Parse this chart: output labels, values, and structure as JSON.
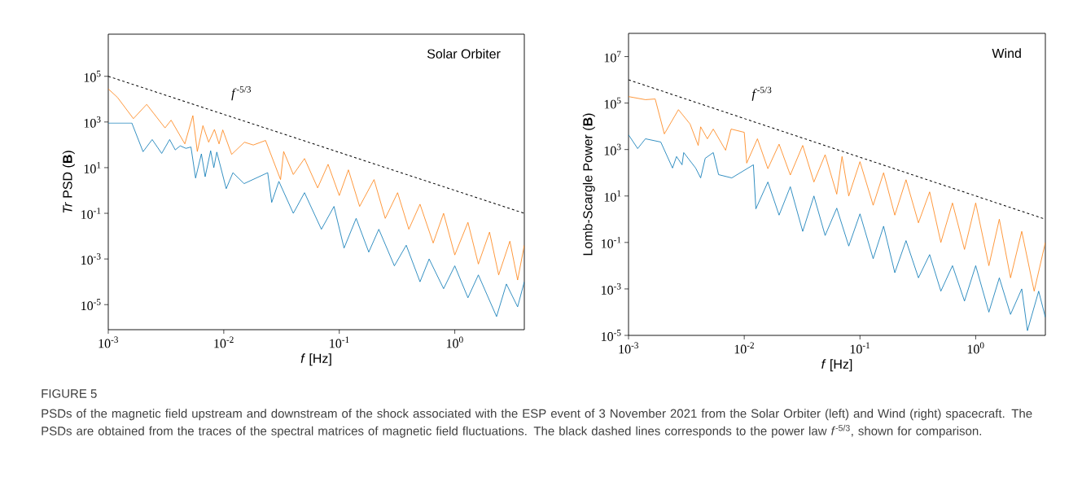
{
  "chart_data": [
    {
      "type": "line",
      "log": "xy",
      "marker": "none",
      "xlabel": "*f* [Hz]",
      "ylabel": "*Tr* PSD (**B**)",
      "xlim": [
        0.001,
        4
      ],
      "ylim": [
        8e-07,
        7000000.0
      ],
      "xticks": [
        {
          "value": 0.001,
          "label": "10$^{-3}$"
        },
        {
          "value": 0.01,
          "label": "10$^{-2}$"
        },
        {
          "value": 0.1,
          "label": "10$^{-1}$"
        },
        {
          "value": 1,
          "label": "10$^{0}$"
        }
      ],
      "yticks": [
        {
          "value": 1e-05,
          "label": "10$^{-5}$"
        },
        {
          "value": 0.001,
          "label": "10$^{-3}$"
        },
        {
          "value": 0.1,
          "label": "10$^{-1}$"
        },
        {
          "value": 10,
          "label": "10$^{1}$"
        },
        {
          "value": 1000,
          "label": "10$^{3}$"
        },
        {
          "value": 100000,
          "label": "10$^{5}$"
        }
      ],
      "series": [
        {
          "color": "#fe7f0e",
          "x": [
            0.001,
            0.0012,
            0.00165,
            0.00215,
            0.0031,
            0.0035,
            0.0046,
            0.0054,
            0.0059,
            0.0066,
            0.0074,
            0.0083,
            0.0091,
            0.0098,
            0.0117,
            0.0151,
            0.018,
            0.023,
            0.031,
            0.033,
            0.04,
            0.05,
            0.065,
            0.08,
            0.1,
            0.12,
            0.15,
            0.2,
            0.25,
            0.32,
            0.4,
            0.5,
            0.65,
            0.8,
            1.0,
            1.3,
            1.6,
            2.0,
            2.4,
            3.0,
            3.5,
            4.0
          ],
          "values": [
            28000,
            12000,
            1400,
            5900,
            550,
            1200,
            110,
            1900,
            51,
            690,
            130,
            470,
            110,
            450,
            38,
            130,
            98,
            155,
            3.0,
            51,
            5,
            25,
            1.3,
            14,
            0.6,
            8,
            0.2,
            3,
            0.06,
            0.8,
            0.02,
            0.25,
            0.005,
            0.1,
            0.0015,
            0.04,
            0.0006,
            0.015,
            0.0002,
            0.006,
            0.00012,
            0.004
          ]
        },
        {
          "color": "#0173b2",
          "x": [
            0.001,
            0.0016,
            0.002,
            0.0024,
            0.0029,
            0.0034,
            0.0038,
            0.0042,
            0.0047,
            0.0052,
            0.0057,
            0.0064,
            0.0069,
            0.0077,
            0.0082,
            0.0087,
            0.0105,
            0.012,
            0.015,
            0.024,
            0.026,
            0.03,
            0.04,
            0.05,
            0.07,
            0.09,
            0.11,
            0.14,
            0.18,
            0.22,
            0.3,
            0.38,
            0.5,
            0.6,
            0.8,
            1.0,
            1.3,
            1.6,
            2.3,
            2.8,
            3.5,
            4.0
          ],
          "values": [
            900,
            900,
            50,
            170,
            42,
            170,
            60,
            90,
            70,
            80,
            3.5,
            40,
            4,
            55,
            10,
            48,
            1.2,
            6,
            2,
            6,
            0.3,
            2.5,
            0.1,
            0.8,
            0.02,
            0.2,
            0.003,
            0.06,
            0.002,
            0.02,
            0.0005,
            0.004,
            0.0001,
            0.001,
            5e-05,
            0.0005,
            2e-05,
            0.0002,
            3e-06,
            8e-05,
            8e-06,
            0.0001
          ]
        },
        {
          "color": "#000000",
          "line_style": "dashed",
          "x": [
            0.001,
            4
          ],
          "values": [
            100000,
            0.1
          ]
        }
      ],
      "annotations": [
        "Solar Orbiter",
        "*f*$^{-5/3}$",
        "FIGURE 5",
        "PSDs of the magnetic field upstream and downstream of the shock associated with the ESP event of 3 November 2021 from the Solar Orbiter (left) and Wind (right) spacecraft. The PSDs are obtained from the traces of the spectral matrices of magnetic field fluctuations. The black dashed lines corresponds to the power law *f*$^{-5/3}$, shown for comparison."
      ]
    },
    {
      "type": "line",
      "log": "xy",
      "marker": "none",
      "xlabel": "*f* [Hz]",
      "ylabel": "Lomb-Scargle Power (**B**)",
      "xlim": [
        0.001,
        4
      ],
      "ylim": [
        1e-05,
        100000000.0
      ],
      "xticks": [
        {
          "value": 0.001,
          "label": "10$^{-3}$"
        },
        {
          "value": 0.01,
          "label": "10$^{-2}$"
        },
        {
          "value": 0.1,
          "label": "10$^{-1}$"
        },
        {
          "value": 1,
          "label": "10$^{0}$"
        }
      ],
      "yticks": [
        {
          "value": 1e-05,
          "label": "10$^{-5}$"
        },
        {
          "value": 0.001,
          "label": "10$^{-3}$"
        },
        {
          "value": 0.1,
          "label": "10$^{-1}$"
        },
        {
          "value": 10,
          "label": "10$^{1}$"
        },
        {
          "value": 1000,
          "label": "10$^{3}$"
        },
        {
          "value": 100000,
          "label": "10$^{5}$"
        },
        {
          "value": 10000000,
          "label": "10$^{7}$"
        }
      ],
      "series": [
        {
          "color": "#fe7f0e",
          "x": [
            0.001,
            0.0014,
            0.0017,
            0.00204,
            0.0027,
            0.0034,
            0.004,
            0.0042,
            0.0048,
            0.0054,
            0.0069,
            0.0077,
            0.01,
            0.0105,
            0.013,
            0.016,
            0.02,
            0.025,
            0.032,
            0.04,
            0.05,
            0.063,
            0.07,
            0.08,
            0.1,
            0.13,
            0.16,
            0.2,
            0.25,
            0.32,
            0.4,
            0.5,
            0.63,
            0.8,
            1.0,
            1.3,
            1.6,
            2.0,
            2.5,
            3.2,
            4.0
          ],
          "values": [
            190000,
            140000,
            150000,
            4700,
            52000,
            12600,
            1500,
            9500,
            2900,
            7600,
            930,
            7600,
            5500,
            260,
            2900,
            150,
            1700,
            80,
            1500,
            40,
            600,
            12,
            500,
            10,
            300,
            4,
            100,
            1.5,
            50,
            0.7,
            15,
            0.1,
            5,
            0.05,
            5,
            0.01,
            1,
            0.003,
            0.3,
            0.0008,
            0.1
          ]
        },
        {
          "color": "#0173b2",
          "x": [
            0.001,
            0.0012,
            0.0014,
            0.0019,
            0.0024,
            0.0026,
            0.0029,
            0.003,
            0.0038,
            0.0042,
            0.0046,
            0.0054,
            0.006,
            0.0078,
            0.012,
            0.0126,
            0.016,
            0.02,
            0.025,
            0.032,
            0.04,
            0.05,
            0.063,
            0.08,
            0.1,
            0.13,
            0.16,
            0.2,
            0.25,
            0.32,
            0.4,
            0.5,
            0.63,
            0.8,
            1.0,
            1.3,
            1.6,
            2.0,
            2.5,
            2.8,
            3.5,
            4.0
          ],
          "values": [
            4300,
            1100,
            2900,
            2100,
            160,
            500,
            220,
            740,
            160,
            60,
            420,
            740,
            83,
            60,
            220,
            2.8,
            40,
            1.5,
            25,
            0.3,
            10,
            0.2,
            3,
            0.07,
            1.7,
            0.02,
            0.5,
            0.005,
            0.12,
            0.003,
            0.03,
            0.0008,
            0.01,
            0.0003,
            0.01,
            0.0001,
            0.003,
            8e-05,
            0.001,
            1.6e-05,
            0.0008,
            6e-05
          ]
        },
        {
          "color": "#000000",
          "line_style": "dashed",
          "x": [
            0.001,
            4
          ],
          "values": [
            1000000,
            1
          ]
        }
      ],
      "annotations": [
        "Wind",
        "*f*$^{-5/3}$"
      ]
    }
  ]
}
